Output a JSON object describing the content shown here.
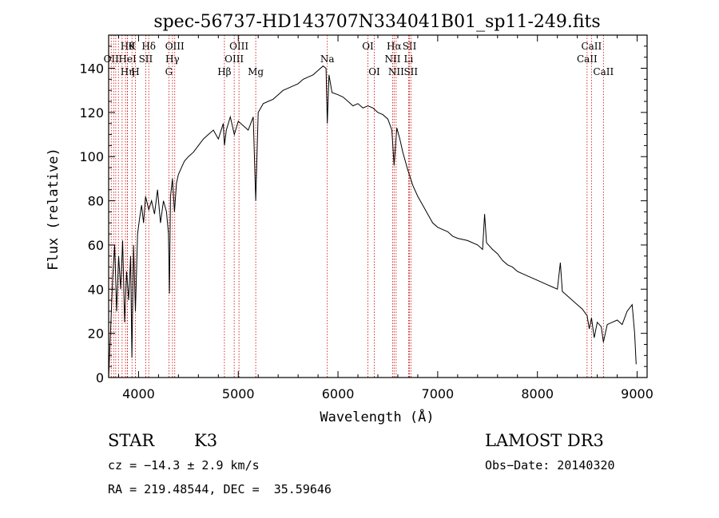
{
  "chart_data": {
    "type": "line",
    "title": "spec-56737-HD143707N334041B01_sp11-249.fits",
    "xlabel": "Wavelength (Å)",
    "ylabel": "Flux (relative)",
    "xlim": [
      3700,
      9100
    ],
    "ylim": [
      0,
      155
    ],
    "xticks": [
      4000,
      5000,
      6000,
      7000,
      8000,
      9000
    ],
    "yticks": [
      0,
      20,
      40,
      60,
      80,
      100,
      120,
      140
    ],
    "grid": false,
    "series": [
      {
        "x": [
          3700,
          3720,
          3740,
          3760,
          3780,
          3800,
          3820,
          3840,
          3860,
          3880,
          3900,
          3920,
          3933,
          3950,
          3968,
          3990,
          4010,
          4030,
          4050,
          4070,
          4102,
          4130,
          4160,
          4190,
          4220,
          4250,
          4280,
          4300,
          4310,
          4320,
          4340,
          4360,
          4380,
          4400,
          4430,
          4460,
          4500,
          4550,
          4600,
          4650,
          4700,
          4750,
          4800,
          4850,
          4861,
          4880,
          4920,
          4960,
          5000,
          5050,
          5100,
          5150,
          5175,
          5200,
          5250,
          5300,
          5350,
          5400,
          5450,
          5500,
          5550,
          5600,
          5650,
          5700,
          5750,
          5800,
          5850,
          5880,
          5893,
          5910,
          5940,
          6000,
          6050,
          6100,
          6150,
          6200,
          6250,
          6300,
          6350,
          6400,
          6450,
          6500,
          6540,
          6563,
          6590,
          6620,
          6650,
          6700,
          6750,
          6800,
          6850,
          6900,
          6950,
          7000,
          7050,
          7100,
          7150,
          7200,
          7300,
          7400,
          7450,
          7470,
          7490,
          7550,
          7600,
          7650,
          7700,
          7750,
          7800,
          7900,
          8000,
          8100,
          8150,
          8200,
          8230,
          8250,
          8300,
          8400,
          8450,
          8498,
          8520,
          8542,
          8570,
          8600,
          8640,
          8662,
          8700,
          8750,
          8800,
          8850,
          8900,
          8950,
          8975,
          8990
        ],
        "y": [
          0,
          22,
          45,
          60,
          30,
          55,
          40,
          62,
          25,
          48,
          35,
          55,
          9,
          60,
          30,
          65,
          72,
          78,
          70,
          82,
          76,
          80,
          74,
          85,
          70,
          80,
          75,
          65,
          38,
          82,
          90,
          75,
          88,
          92,
          95,
          98,
          100,
          102,
          105,
          108,
          110,
          112,
          108,
          115,
          105,
          112,
          118,
          110,
          116,
          114,
          112,
          118,
          80,
          120,
          124,
          125,
          126,
          128,
          130,
          131,
          132,
          133,
          135,
          136,
          137,
          139,
          141,
          140,
          115,
          137,
          129,
          128,
          127,
          125,
          123,
          124,
          122,
          123,
          122,
          120,
          119,
          117,
          112,
          96,
          113,
          108,
          102,
          94,
          87,
          82,
          78,
          74,
          70,
          68,
          67,
          66,
          64,
          63,
          62,
          60,
          58,
          74,
          61,
          58,
          56,
          53,
          51,
          50,
          48,
          46,
          44,
          42,
          41,
          40,
          52,
          39,
          37,
          33,
          31,
          28,
          22,
          27,
          18,
          25,
          23,
          16,
          24,
          25,
          26,
          24,
          30,
          33,
          20,
          6
        ]
      }
    ],
    "line_markers": [
      {
        "w": 3726,
        "label": "OII",
        "row": 2
      },
      {
        "w": 3750,
        "label": "",
        "row": 0
      },
      {
        "w": 3771,
        "label": "",
        "row": 0
      },
      {
        "w": 3798,
        "label": "",
        "row": 0
      },
      {
        "w": 3835,
        "label": "",
        "row": 0
      },
      {
        "w": 3869,
        "label": "",
        "row": 0
      },
      {
        "w": 3889,
        "label": "Hθ",
        "row": 1
      },
      {
        "w": 3889,
        "label": "HeI",
        "row": 2
      },
      {
        "w": 3889,
        "label": "Hη",
        "row": 3
      },
      {
        "w": 3934,
        "label": "K",
        "row": 1
      },
      {
        "w": 3968,
        "label": "H",
        "row": 3
      },
      {
        "w": 4072,
        "label": "SII",
        "row": 2
      },
      {
        "w": 4102,
        "label": "Hδ",
        "row": 1
      },
      {
        "w": 4304,
        "label": "G",
        "row": 3
      },
      {
        "w": 4340,
        "label": "Hγ",
        "row": 2
      },
      {
        "w": 4363,
        "label": "OIII",
        "row": 1
      },
      {
        "w": 4861,
        "label": "Hβ",
        "row": 3
      },
      {
        "w": 4959,
        "label": "OIII",
        "row": 2
      },
      {
        "w": 5007,
        "label": "OIII",
        "row": 1
      },
      {
        "w": 5175,
        "label": "Mg",
        "row": 3
      },
      {
        "w": 5893,
        "label": "Na",
        "row": 2
      },
      {
        "w": 6300,
        "label": "OI",
        "row": 1
      },
      {
        "w": 6364,
        "label": "OI",
        "row": 3
      },
      {
        "w": 6548,
        "label": "NII",
        "row": 2
      },
      {
        "w": 6563,
        "label": "Hα",
        "row": 1
      },
      {
        "w": 6583,
        "label": "NII",
        "row": 3
      },
      {
        "w": 6708,
        "label": "Li",
        "row": 2
      },
      {
        "w": 6717,
        "label": "SII",
        "row": 1
      },
      {
        "w": 6731,
        "label": "SII",
        "row": 3
      },
      {
        "w": 8498,
        "label": "CaII",
        "row": 2
      },
      {
        "w": 8542,
        "label": "CaII",
        "row": 1
      },
      {
        "w": 8662,
        "label": "CaII",
        "row": 3
      }
    ]
  },
  "info": {
    "object_class": "STAR",
    "subclass": "K3",
    "survey": "LAMOST DR3",
    "cz": "cz = −14.3 ± 2.9 km/s",
    "obs_date": "Obs−Date: 20140320",
    "coords": "RA = 219.48544, DEC =  35.59646"
  }
}
